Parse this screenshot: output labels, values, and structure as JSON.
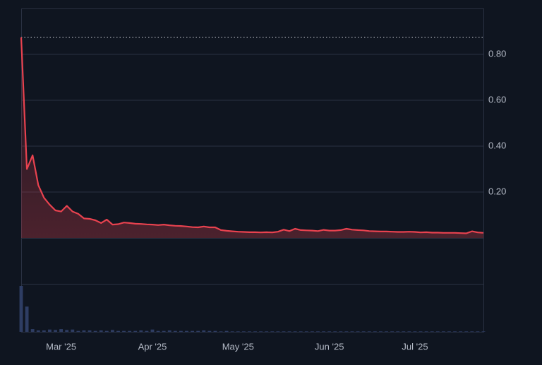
{
  "chart_data": {
    "type": "area-line",
    "color": "#e8424f",
    "grid": true,
    "categories": [
      null,
      null,
      null,
      null,
      null,
      null,
      null,
      "Mar '25",
      null,
      null,
      null,
      null,
      null,
      null,
      null,
      null,
      null,
      null,
      null,
      null,
      null,
      null,
      null,
      "Apr '25",
      null,
      null,
      null,
      null,
      null,
      null,
      null,
      null,
      null,
      null,
      null,
      null,
      null,
      null,
      "May '25",
      null,
      null,
      null,
      null,
      null,
      null,
      null,
      null,
      null,
      null,
      null,
      null,
      null,
      null,
      null,
      "Jun '25",
      null,
      null,
      null,
      null,
      null,
      null,
      null,
      null,
      null,
      null,
      null,
      null,
      null,
      null,
      "Jul '25",
      null,
      null,
      null,
      null,
      null,
      null,
      null,
      null,
      null,
      null,
      null,
      null
    ],
    "values": [
      0.874,
      0.3,
      0.36,
      0.23,
      0.175,
      0.145,
      0.12,
      0.115,
      0.14,
      0.115,
      0.105,
      0.085,
      0.083,
      0.077,
      0.065,
      0.08,
      0.058,
      0.06,
      0.067,
      0.065,
      0.062,
      0.061,
      0.059,
      0.058,
      0.056,
      0.058,
      0.055,
      0.053,
      0.052,
      0.05,
      0.047,
      0.046,
      0.05,
      0.046,
      0.046,
      0.034,
      0.031,
      0.029,
      0.027,
      0.026,
      0.025,
      0.025,
      0.024,
      0.025,
      0.024,
      0.027,
      0.036,
      0.03,
      0.04,
      0.034,
      0.033,
      0.032,
      0.03,
      0.035,
      0.032,
      0.032,
      0.034,
      0.04,
      0.036,
      0.034,
      0.033,
      0.03,
      0.029,
      0.028,
      0.028,
      0.027,
      0.026,
      0.026,
      0.027,
      0.026,
      0.024,
      0.025,
      0.023,
      0.023,
      0.022,
      0.022,
      0.022,
      0.021,
      0.02,
      0.029,
      0.024,
      0.022
    ],
    "ylim": [
      -0.4,
      1.0
    ],
    "yticks": [
      {
        "value": 0.8,
        "label": "0.80"
      },
      {
        "value": 0.6,
        "label": "0.60"
      },
      {
        "value": 0.4,
        "label": "0.40"
      },
      {
        "value": 0.2,
        "label": "0.20"
      }
    ],
    "volume": {
      "color": "#2e3d63",
      "ylim": [
        0,
        100
      ],
      "values": [
        100,
        55,
        6,
        3,
        3,
        5,
        4,
        6,
        4,
        5,
        2,
        3,
        3,
        2,
        3,
        2,
        4,
        2,
        2,
        2,
        2,
        3,
        2,
        5,
        2,
        2,
        3,
        2,
        2,
        2,
        2,
        2,
        3,
        2,
        2,
        1,
        2,
        1,
        1,
        1,
        1,
        1,
        1,
        1,
        1,
        1,
        1,
        1,
        1,
        1,
        1,
        1,
        1,
        1,
        1,
        1,
        1,
        1,
        1,
        1,
        1,
        1,
        1,
        1,
        1,
        1,
        1,
        1,
        1,
        1,
        1,
        1,
        1,
        1,
        1,
        1,
        1,
        1,
        1,
        1,
        1,
        1
      ]
    }
  }
}
